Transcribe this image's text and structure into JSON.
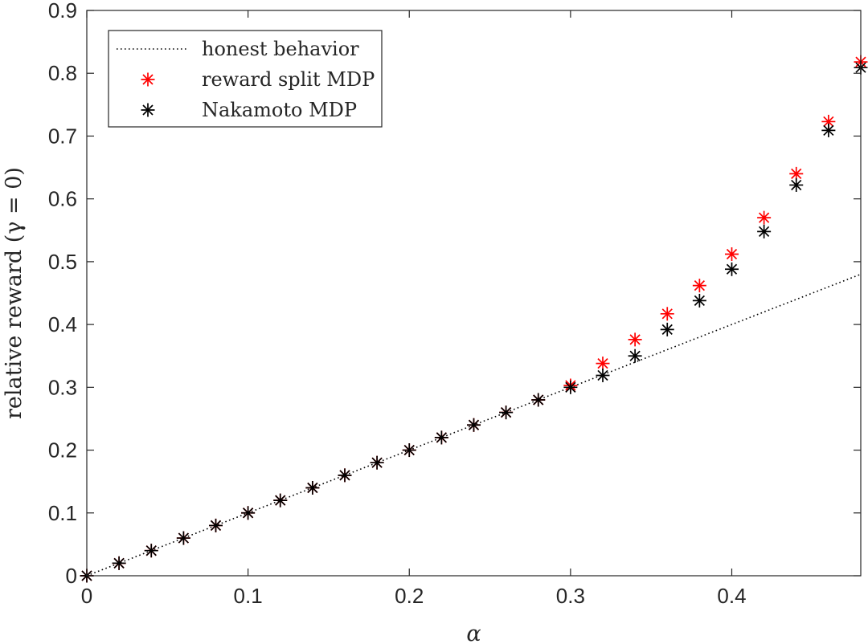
{
  "chart_data": {
    "type": "scatter",
    "title": "",
    "xlabel": "α",
    "ylabel": "relative reward (γ = 0)",
    "xlim": [
      0,
      0.48
    ],
    "ylim": [
      0,
      0.9
    ],
    "x_ticks": [
      0,
      0.1,
      0.2,
      0.3,
      0.4
    ],
    "x_tick_labels": [
      "0",
      "0.1",
      "0.2",
      "0.3",
      "0.4"
    ],
    "y_ticks": [
      0,
      0.1,
      0.2,
      0.3,
      0.4,
      0.5,
      0.6,
      0.7,
      0.8,
      0.9
    ],
    "y_tick_labels": [
      "0",
      "0.1",
      "0.2",
      "0.3",
      "0.4",
      "0.5",
      "0.6",
      "0.7",
      "0.8",
      "0.9"
    ],
    "grid": false,
    "legend_position": "top-left",
    "series": [
      {
        "name": "honest behavior",
        "style": "dotted-line",
        "color": "#000000",
        "x": [
          0,
          0.48
        ],
        "y": [
          0,
          0.48
        ]
      },
      {
        "name": "reward split MDP",
        "style": "asterisk",
        "color": "#ff0000",
        "x": [
          0,
          0.02,
          0.04,
          0.06,
          0.08,
          0.1,
          0.12,
          0.14,
          0.16,
          0.18,
          0.2,
          0.22,
          0.24,
          0.26,
          0.28,
          0.3,
          0.32,
          0.34,
          0.36,
          0.38,
          0.4,
          0.42,
          0.44,
          0.46,
          0.48
        ],
        "y": [
          0,
          0.02,
          0.04,
          0.06,
          0.08,
          0.1,
          0.12,
          0.14,
          0.16,
          0.18,
          0.2,
          0.22,
          0.24,
          0.26,
          0.28,
          0.303,
          0.338,
          0.376,
          0.417,
          0.462,
          0.512,
          0.57,
          0.64,
          0.723,
          0.818
        ]
      },
      {
        "name": "Nakamoto MDP",
        "style": "asterisk",
        "color": "#000000",
        "x": [
          0,
          0.02,
          0.04,
          0.06,
          0.08,
          0.1,
          0.12,
          0.14,
          0.16,
          0.18,
          0.2,
          0.22,
          0.24,
          0.26,
          0.28,
          0.3,
          0.32,
          0.34,
          0.36,
          0.38,
          0.4,
          0.42,
          0.44,
          0.46,
          0.48
        ],
        "y": [
          0,
          0.02,
          0.04,
          0.06,
          0.08,
          0.1,
          0.12,
          0.14,
          0.16,
          0.18,
          0.2,
          0.22,
          0.24,
          0.26,
          0.28,
          0.3,
          0.319,
          0.35,
          0.392,
          0.438,
          0.488,
          0.548,
          0.622,
          0.709,
          0.809
        ]
      }
    ]
  }
}
